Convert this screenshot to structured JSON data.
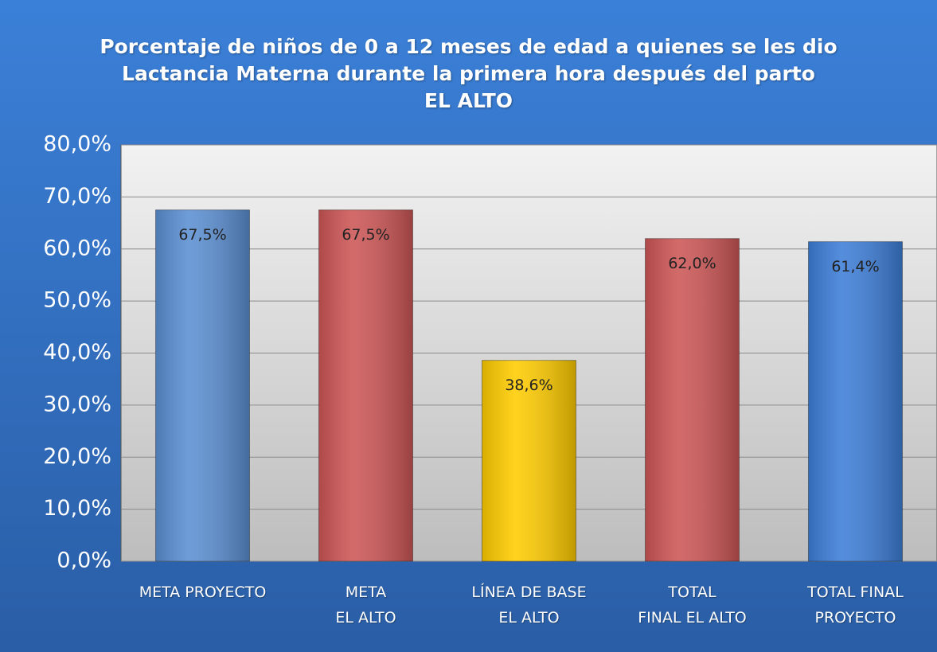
{
  "chart_data": {
    "type": "bar",
    "title": "Porcentaje de niños de 0 a 12 meses de edad a quienes se les dio\nLactancia Materna durante la primera hora después del parto\nEL  ALTO",
    "categories": [
      "META PROYECTO",
      "META\nEL ALTO",
      "LÍNEA DE BASE\nEL ALTO",
      "TOTAL\nFINAL EL ALTO",
      "TOTAL FINAL\nPROYECTO"
    ],
    "values": [
      67.5,
      67.5,
      38.6,
      62.0,
      61.4
    ],
    "value_labels": [
      "67,5%",
      "67,5%",
      "38,6%",
      "62,0%",
      "61,4%"
    ],
    "colors": [
      "#5b8fd2",
      "#cd5656",
      "#ffcc00",
      "#cd5656",
      "#3d7ed8"
    ],
    "ylim": [
      0,
      80
    ],
    "yticks": [
      {
        "value": 0,
        "label": "0,0%"
      },
      {
        "value": 10,
        "label": "10,0%"
      },
      {
        "value": 20,
        "label": "20,0%"
      },
      {
        "value": 30,
        "label": "30,0%"
      },
      {
        "value": 40,
        "label": "40,0%"
      },
      {
        "value": 50,
        "label": "50,0%"
      },
      {
        "value": 60,
        "label": "60,0%"
      },
      {
        "value": 70,
        "label": "70,0%"
      },
      {
        "value": 80,
        "label": "80,0%"
      }
    ],
    "grid": true
  }
}
